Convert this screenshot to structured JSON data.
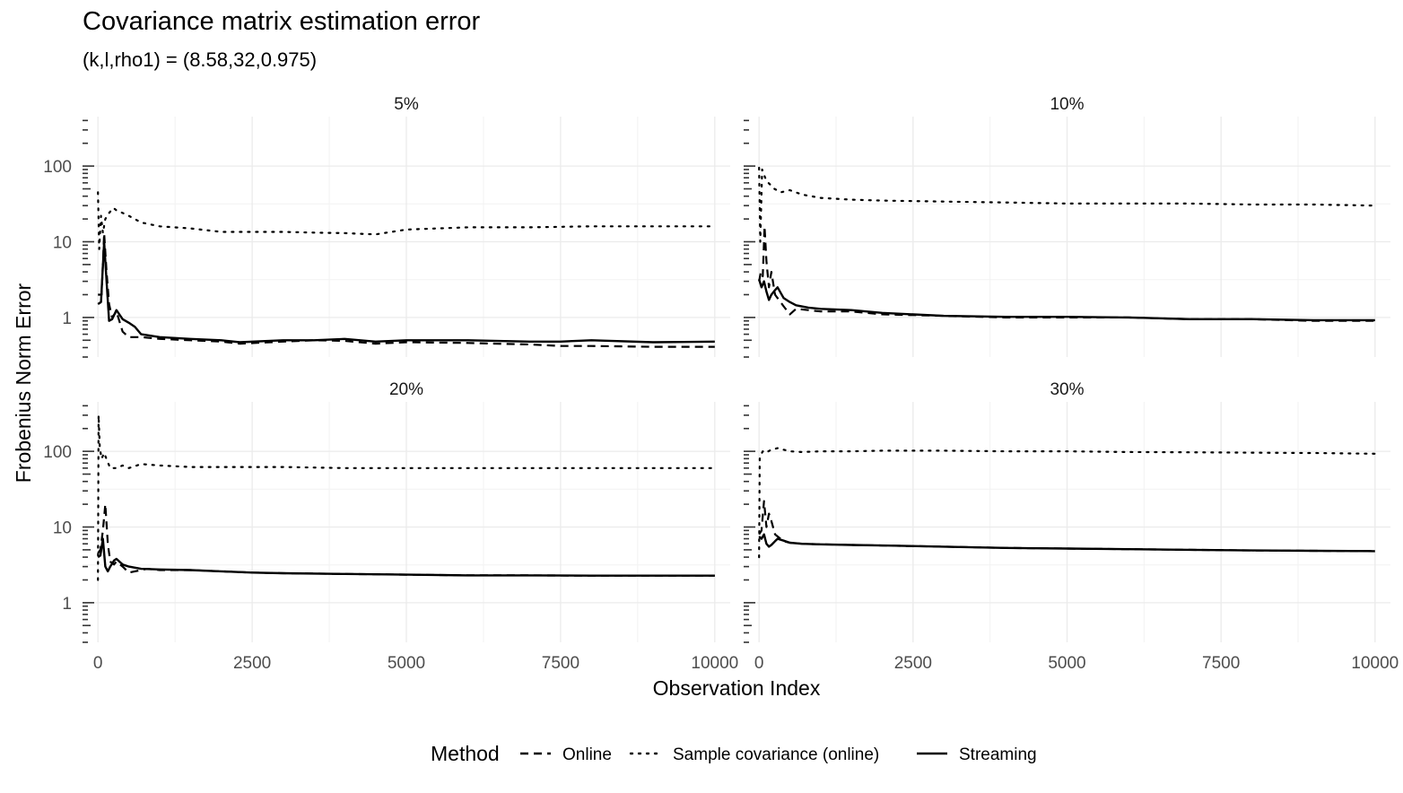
{
  "title": "Covariance matrix estimation error",
  "subtitle": "(k,l,rho1) = (8.58,32,0.975)",
  "chart_data": {
    "type": "line",
    "xlabel": "Observation Index",
    "ylabel": "Frobenius Norm Error",
    "xlim": [
      -250,
      10250
    ],
    "xticks": [
      0,
      2500,
      5000,
      7500,
      10000
    ],
    "xtick_labels": [
      "0",
      "2500",
      "5000",
      "7500",
      "10000"
    ],
    "y_scale": "log10",
    "ylim": [
      0.3,
      450
    ],
    "yticks": [
      1,
      10,
      100
    ],
    "ytick_labels": [
      "1",
      "10",
      "100"
    ],
    "grid": true,
    "legend": {
      "title": "Method",
      "position": "bottom",
      "entries": [
        "Online",
        "Sample covariance (online)",
        "Streaming"
      ]
    },
    "panels": [
      {
        "label": "5%",
        "series": [
          {
            "name": "Online",
            "linestyle": "dashed",
            "x": [
              0,
              60,
              100,
              140,
              180,
              230,
              300,
              400,
              500,
              700,
              1000,
              1500,
              2000,
              2300,
              3000,
              3500,
              4000,
              4500,
              5000,
              6000,
              7000,
              7500,
              8000,
              9000,
              10000
            ],
            "y": [
              2.0,
              2.0,
              13,
              4,
              1.5,
              1.0,
              1.2,
              0.65,
              0.55,
              0.55,
              0.52,
              0.5,
              0.48,
              0.45,
              0.48,
              0.5,
              0.49,
              0.45,
              0.47,
              0.46,
              0.44,
              0.42,
              0.42,
              0.41,
              0.41
            ]
          },
          {
            "name": "Sample covariance (online)",
            "linestyle": "dotted",
            "x": [
              0,
              20,
              50,
              80,
              120,
              180,
              250,
              300,
              400,
              500,
              700,
              1000,
              1500,
              2000,
              2500,
              3000,
              3500,
              4000,
              4500,
              5000,
              6000,
              7000,
              8000,
              9000,
              10000
            ],
            "y": [
              45,
              8,
              22,
              13,
              20,
              24,
              28,
              26,
              24,
              22,
              18,
              16,
              15,
              13.5,
              13.5,
              13.5,
              13.2,
              13,
              12.5,
              14.5,
              15.5,
              15.5,
              16,
              16,
              16
            ]
          },
          {
            "name": "Streaming",
            "linestyle": "solid",
            "x": [
              0,
              50,
              100,
              140,
              180,
              230,
              300,
              400,
              500,
              600,
              700,
              1000,
              1500,
              2000,
              2300,
              3000,
              3500,
              4000,
              4500,
              5000,
              6000,
              7000,
              7500,
              8000,
              9000,
              10000
            ],
            "y": [
              1.5,
              1.6,
              10,
              3,
              0.9,
              0.95,
              1.25,
              0.95,
              0.85,
              0.75,
              0.6,
              0.55,
              0.52,
              0.5,
              0.47,
              0.5,
              0.5,
              0.52,
              0.48,
              0.5,
              0.5,
              0.48,
              0.48,
              0.5,
              0.47,
              0.48
            ]
          }
        ]
      },
      {
        "label": "10%",
        "series": [
          {
            "name": "Online",
            "linestyle": "dashed",
            "x": [
              0,
              30,
              60,
              90,
              120,
              160,
              200,
              260,
              300,
              400,
              500,
              600,
              800,
              1000,
              1500,
              2000,
              3000,
              4000,
              5000,
              6000,
              7000,
              8000,
              9000,
              10000
            ],
            "y": [
              3.0,
              4.0,
              3.5,
              16,
              5.5,
              2.5,
              4.0,
              2.0,
              1.8,
              1.4,
              1.1,
              1.3,
              1.25,
              1.2,
              1.2,
              1.1,
              1.05,
              1.0,
              1.0,
              1.0,
              0.95,
              0.95,
              0.9,
              0.9
            ]
          },
          {
            "name": "Sample covariance (online)",
            "linestyle": "dotted",
            "x": [
              0,
              20,
              50,
              100,
              150,
              250,
              350,
              500,
              700,
              1000,
              1500,
              2000,
              3000,
              4000,
              5000,
              6000,
              7000,
              8000,
              9000,
              10000
            ],
            "y": [
              95,
              10,
              90,
              70,
              60,
              50,
              45,
              48,
              42,
              38,
              36,
              35,
              34,
              33,
              32,
              32,
              32,
              31,
              31,
              30
            ]
          },
          {
            "name": "Streaming",
            "linestyle": "solid",
            "x": [
              0,
              40,
              80,
              120,
              160,
              200,
              260,
              300,
              400,
              500,
              600,
              800,
              1000,
              1500,
              2000,
              3000,
              4000,
              5000,
              6000,
              7000,
              8000,
              9000,
              10000
            ],
            "y": [
              3.2,
              2.5,
              3.0,
              2.2,
              1.7,
              2.0,
              2.3,
              2.5,
              1.8,
              1.6,
              1.45,
              1.35,
              1.3,
              1.25,
              1.15,
              1.05,
              1.02,
              1.02,
              1.0,
              0.95,
              0.95,
              0.92,
              0.92
            ]
          }
        ]
      },
      {
        "label": "20%",
        "series": [
          {
            "name": "Online",
            "linestyle": "dashed",
            "x": [
              0,
              40,
              80,
              120,
              160,
              200,
              260,
              300,
              400,
              500,
              600,
              800,
              1000,
              1500,
              2000,
              2500,
              3000,
              4000,
              5000,
              6000,
              7000,
              8000,
              9000,
              10000
            ],
            "y": [
              4.5,
              5.0,
              9,
              20,
              6,
              3.5,
              3.2,
              3.5,
              3.0,
              2.5,
              2.6,
              2.8,
              2.7,
              2.7,
              2.6,
              2.5,
              2.45,
              2.4,
              2.35,
              2.3,
              2.3,
              2.28,
              2.28,
              2.28
            ]
          },
          {
            "name": "Sample covariance (online)",
            "linestyle": "dotted",
            "x": [
              0,
              10,
              30,
              60,
              100,
              150,
              200,
              300,
              400,
              500,
              700,
              1000,
              1500,
              2000,
              3000,
              4000,
              5000,
              6000,
              7000,
              8000,
              9000,
              10000
            ],
            "y": [
              2,
              300,
              110,
              80,
              95,
              75,
              60,
              60,
              65,
              60,
              68,
              65,
              62,
              62,
              62,
              60,
              60,
              60,
              60,
              60,
              60,
              60
            ]
          },
          {
            "name": "Streaming",
            "linestyle": "solid",
            "x": [
              0,
              40,
              80,
              120,
              160,
              200,
              260,
              300,
              400,
              500,
              700,
              1000,
              1500,
              2000,
              2500,
              3000,
              4000,
              5000,
              6000,
              7000,
              8000,
              9000,
              10000
            ],
            "y": [
              4.0,
              4.2,
              7,
              3.0,
              2.6,
              3.0,
              3.6,
              3.8,
              3.2,
              3.0,
              2.8,
              2.75,
              2.7,
              2.6,
              2.5,
              2.45,
              2.4,
              2.35,
              2.3,
              2.3,
              2.28,
              2.28,
              2.28
            ]
          }
        ]
      },
      {
        "label": "30%",
        "series": [
          {
            "name": "Online",
            "linestyle": "dashed",
            "x": [
              0,
              40,
              80,
              120,
              160,
              200,
              260,
              300,
              400,
              500,
              700,
              1000,
              1500,
              2000,
              3000,
              4000,
              5000,
              6000,
              7000,
              8000,
              9000,
              10000
            ],
            "y": [
              8,
              9,
              22,
              10,
              15,
              12,
              8,
              7.5,
              6.5,
              6.2,
              6.0,
              5.9,
              5.8,
              5.7,
              5.5,
              5.3,
              5.2,
              5.1,
              5.0,
              4.9,
              4.85,
              4.8
            ]
          },
          {
            "name": "Sample covariance (online)",
            "linestyle": "dotted",
            "x": [
              0,
              10,
              30,
              60,
              100,
              150,
              200,
              300,
              500,
              700,
              1000,
              1500,
              2000,
              3000,
              4000,
              5000,
              6000,
              7000,
              8000,
              9000,
              10000
            ],
            "y": [
              4,
              80,
              90,
              100,
              95,
              100,
              105,
              110,
              100,
              98,
              100,
              100,
              102,
              102,
              100,
              100,
              98,
              97,
              96,
              95,
              93
            ]
          },
          {
            "name": "Streaming",
            "linestyle": "solid",
            "x": [
              0,
              40,
              80,
              120,
              160,
              200,
              260,
              300,
              400,
              500,
              700,
              1000,
              1500,
              2000,
              3000,
              4000,
              5000,
              6000,
              7000,
              8000,
              9000,
              10000
            ],
            "y": [
              7.5,
              7.0,
              8.0,
              6.0,
              5.5,
              5.8,
              6.5,
              7.0,
              6.6,
              6.2,
              6.0,
              5.9,
              5.8,
              5.7,
              5.5,
              5.3,
              5.2,
              5.1,
              5.0,
              4.9,
              4.85,
              4.8
            ]
          }
        ]
      }
    ]
  }
}
